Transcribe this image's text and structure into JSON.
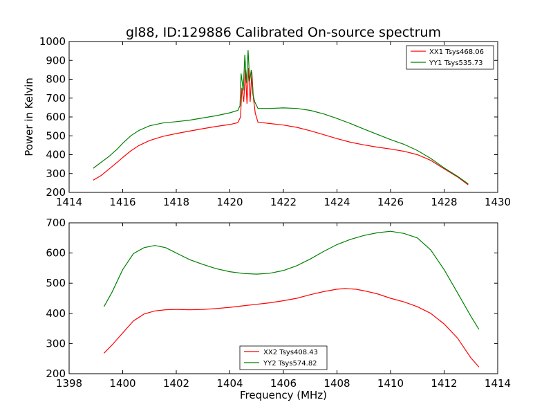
{
  "chart_data": [
    {
      "type": "line",
      "title": "gl88, ID:129886 Calibrated On-source spectrum",
      "xlabel": "",
      "ylabel": "Power in Kelvin",
      "xlim": [
        1414,
        1430
      ],
      "ylim": [
        200,
        1000
      ],
      "xticks": [
        1414,
        1416,
        1418,
        1420,
        1422,
        1424,
        1426,
        1428,
        1430
      ],
      "yticks": [
        200,
        300,
        400,
        500,
        600,
        700,
        800,
        900,
        1000
      ],
      "legend_position": "top-right",
      "series": [
        {
          "name": "XX1 Tsys468.06",
          "color": "#ff0000",
          "points": [
            [
              1414.9,
              265
            ],
            [
              1415.2,
              290
            ],
            [
              1415.5,
              325
            ],
            [
              1415.8,
              360
            ],
            [
              1416.0,
              385
            ],
            [
              1416.3,
              420
            ],
            [
              1416.6,
              448
            ],
            [
              1417.0,
              475
            ],
            [
              1417.5,
              497
            ],
            [
              1418.0,
              512
            ],
            [
              1418.5,
              525
            ],
            [
              1419.0,
              538
            ],
            [
              1419.5,
              550
            ],
            [
              1420.0,
              560
            ],
            [
              1420.3,
              570
            ],
            [
              1420.4,
              600
            ],
            [
              1420.45,
              755
            ],
            [
              1420.52,
              680
            ],
            [
              1420.58,
              850
            ],
            [
              1420.64,
              670
            ],
            [
              1420.7,
              860
            ],
            [
              1420.76,
              680
            ],
            [
              1420.82,
              840
            ],
            [
              1420.88,
              700
            ],
            [
              1420.95,
              620
            ],
            [
              1421.05,
              572
            ],
            [
              1421.5,
              565
            ],
            [
              1422.0,
              557
            ],
            [
              1422.5,
              545
            ],
            [
              1423.0,
              527
            ],
            [
              1423.5,
              506
            ],
            [
              1424.0,
              485
            ],
            [
              1424.5,
              466
            ],
            [
              1425.0,
              452
            ],
            [
              1425.5,
              440
            ],
            [
              1426.0,
              430
            ],
            [
              1426.5,
              418
            ],
            [
              1427.0,
              400
            ],
            [
              1427.5,
              370
            ],
            [
              1428.0,
              325
            ],
            [
              1428.5,
              282
            ],
            [
              1428.9,
              240
            ]
          ]
        },
        {
          "name": "YY1 Tsys535.73",
          "color": "#008000",
          "points": [
            [
              1414.9,
              328
            ],
            [
              1415.2,
              360
            ],
            [
              1415.5,
              392
            ],
            [
              1415.8,
              430
            ],
            [
              1416.0,
              460
            ],
            [
              1416.3,
              500
            ],
            [
              1416.6,
              528
            ],
            [
              1417.0,
              553
            ],
            [
              1417.5,
              568
            ],
            [
              1418.0,
              575
            ],
            [
              1418.5,
              583
            ],
            [
              1419.0,
              595
            ],
            [
              1419.5,
              607
            ],
            [
              1420.0,
              622
            ],
            [
              1420.3,
              635
            ],
            [
              1420.38,
              660
            ],
            [
              1420.42,
              830
            ],
            [
              1420.5,
              740
            ],
            [
              1420.56,
              930
            ],
            [
              1420.62,
              780
            ],
            [
              1420.68,
              955
            ],
            [
              1420.74,
              790
            ],
            [
              1420.8,
              850
            ],
            [
              1420.86,
              720
            ],
            [
              1420.93,
              680
            ],
            [
              1421.05,
              645
            ],
            [
              1421.5,
              645
            ],
            [
              1422.0,
              648
            ],
            [
              1422.5,
              645
            ],
            [
              1423.0,
              635
            ],
            [
              1423.5,
              616
            ],
            [
              1424.0,
              592
            ],
            [
              1424.5,
              565
            ],
            [
              1425.0,
              536
            ],
            [
              1425.5,
              508
            ],
            [
              1426.0,
              480
            ],
            [
              1426.5,
              455
            ],
            [
              1427.0,
              422
            ],
            [
              1427.5,
              380
            ],
            [
              1428.0,
              330
            ],
            [
              1428.5,
              285
            ],
            [
              1428.9,
              245
            ]
          ]
        }
      ]
    },
    {
      "type": "line",
      "title": "",
      "xlabel": "Frequency (MHz)",
      "ylabel": "",
      "xlim": [
        1398,
        1414
      ],
      "ylim": [
        200,
        700
      ],
      "xticks": [
        1398,
        1400,
        1402,
        1404,
        1406,
        1408,
        1410,
        1412,
        1414
      ],
      "yticks": [
        200,
        300,
        400,
        500,
        600,
        700
      ],
      "legend_position": "bottom-center",
      "series": [
        {
          "name": "XX2 Tsys408.43",
          "color": "#ff0000",
          "points": [
            [
              1399.3,
              268
            ],
            [
              1399.6,
              295
            ],
            [
              1400.0,
              335
            ],
            [
              1400.4,
              375
            ],
            [
              1400.8,
              398
            ],
            [
              1401.2,
              408
            ],
            [
              1401.6,
              412
            ],
            [
              1402.0,
              413
            ],
            [
              1402.5,
              412
            ],
            [
              1403.0,
              413
            ],
            [
              1403.5,
              416
            ],
            [
              1404.0,
              420
            ],
            [
              1404.5,
              425
            ],
            [
              1405.0,
              430
            ],
            [
              1405.5,
              435
            ],
            [
              1406.0,
              442
            ],
            [
              1406.5,
              450
            ],
            [
              1407.0,
              462
            ],
            [
              1407.5,
              472
            ],
            [
              1408.0,
              480
            ],
            [
              1408.3,
              482
            ],
            [
              1408.7,
              480
            ],
            [
              1409.0,
              475
            ],
            [
              1409.5,
              465
            ],
            [
              1410.0,
              450
            ],
            [
              1410.5,
              438
            ],
            [
              1411.0,
              422
            ],
            [
              1411.5,
              400
            ],
            [
              1412.0,
              365
            ],
            [
              1412.5,
              318
            ],
            [
              1413.0,
              252
            ],
            [
              1413.3,
              222
            ]
          ]
        },
        {
          "name": "YY2 Tsys574.82",
          "color": "#008000",
          "points": [
            [
              1399.3,
              422
            ],
            [
              1399.6,
              470
            ],
            [
              1400.0,
              545
            ],
            [
              1400.4,
              598
            ],
            [
              1400.8,
              618
            ],
            [
              1401.2,
              625
            ],
            [
              1401.6,
              618
            ],
            [
              1402.0,
              600
            ],
            [
              1402.5,
              578
            ],
            [
              1403.0,
              562
            ],
            [
              1403.5,
              548
            ],
            [
              1404.0,
              538
            ],
            [
              1404.5,
              532
            ],
            [
              1405.0,
              530
            ],
            [
              1405.5,
              533
            ],
            [
              1406.0,
              542
            ],
            [
              1406.5,
              558
            ],
            [
              1407.0,
              580
            ],
            [
              1407.5,
              605
            ],
            [
              1408.0,
              628
            ],
            [
              1408.5,
              645
            ],
            [
              1409.0,
              658
            ],
            [
              1409.5,
              667
            ],
            [
              1410.0,
              672
            ],
            [
              1410.5,
              665
            ],
            [
              1411.0,
              650
            ],
            [
              1411.5,
              610
            ],
            [
              1412.0,
              545
            ],
            [
              1412.5,
              468
            ],
            [
              1413.0,
              390
            ],
            [
              1413.3,
              347
            ]
          ]
        }
      ]
    }
  ]
}
